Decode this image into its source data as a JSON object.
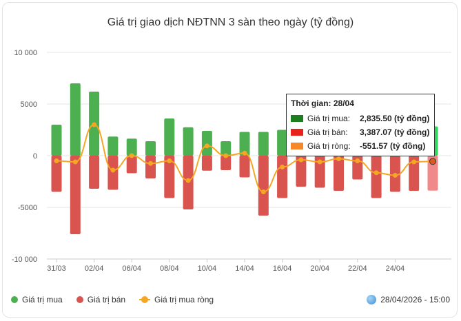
{
  "title": "Giá trị giao dịch NĐTNN 3 sàn theo ngày (tỷ đồng)",
  "chart_data": {
    "type": "bar",
    "title": "Giá trị giao dịch NĐTNN 3 sàn theo ngày (tỷ đồng)",
    "ylim": [
      -10000,
      10000
    ],
    "y_ticks": [
      "10 000",
      "5000",
      "0",
      "-5000",
      "-10 000"
    ],
    "x_ticks": [
      "31/03",
      "02/04",
      "06/04",
      "08/04",
      "10/04",
      "14/04",
      "16/04",
      "20/04",
      "22/04",
      "24/04"
    ],
    "grid": true,
    "legend_position": "bottom-left",
    "series": [
      {
        "name": "Giá trị mua",
        "kind": "bar",
        "color": "#4caf50",
        "values": [
          3000,
          7000,
          6200,
          1850,
          1650,
          1400,
          3600,
          2750,
          2400,
          1400,
          2300,
          2300,
          2500,
          2600,
          2700,
          2500,
          2600,
          2600,
          2700,
          2800,
          2835.5
        ]
      },
      {
        "name": "Giá trị bán",
        "kind": "bar",
        "color": "#d9534f",
        "values": [
          -3500,
          -7600,
          -3200,
          -3300,
          -1700,
          -2200,
          -4100,
          -5200,
          -1450,
          -1400,
          -2100,
          -5800,
          -4100,
          -3000,
          -3100,
          -3400,
          -2300,
          -4100,
          -3500,
          -3400,
          -3387.07
        ]
      },
      {
        "name": "Giá trị mua ròng",
        "kind": "line",
        "color": "#f5a623",
        "values": [
          -500,
          -600,
          3000,
          -1400,
          0,
          -750,
          -500,
          -2400,
          950,
          0,
          250,
          -3500,
          -1100,
          -400,
          -600,
          -300,
          -500,
          -1650,
          -1900,
          -600,
          -551.57
        ]
      }
    ],
    "highlight_index": 20
  },
  "tooltip": {
    "title": "Thời gian: 28/04",
    "rows": [
      {
        "label": "Giá trị mua:",
        "value": "2,835.50 (tỷ đồng)",
        "color": "#1e7d1e"
      },
      {
        "label": "Giá trị bán:",
        "value": "3,387.07 (tỷ đồng)",
        "color": "#e8231c"
      },
      {
        "label": "Giá trị ròng:",
        "value": "-551.57 (tỷ đồng)",
        "color": "#f5892a"
      }
    ]
  },
  "legend": {
    "buy": "Giá trị mua",
    "sell": "Giá trị bán",
    "net": "Giá trị mua ròng"
  },
  "timestamp": "28/04/2026 - 15:00",
  "icons": {
    "timestamp": "globe-icon"
  }
}
